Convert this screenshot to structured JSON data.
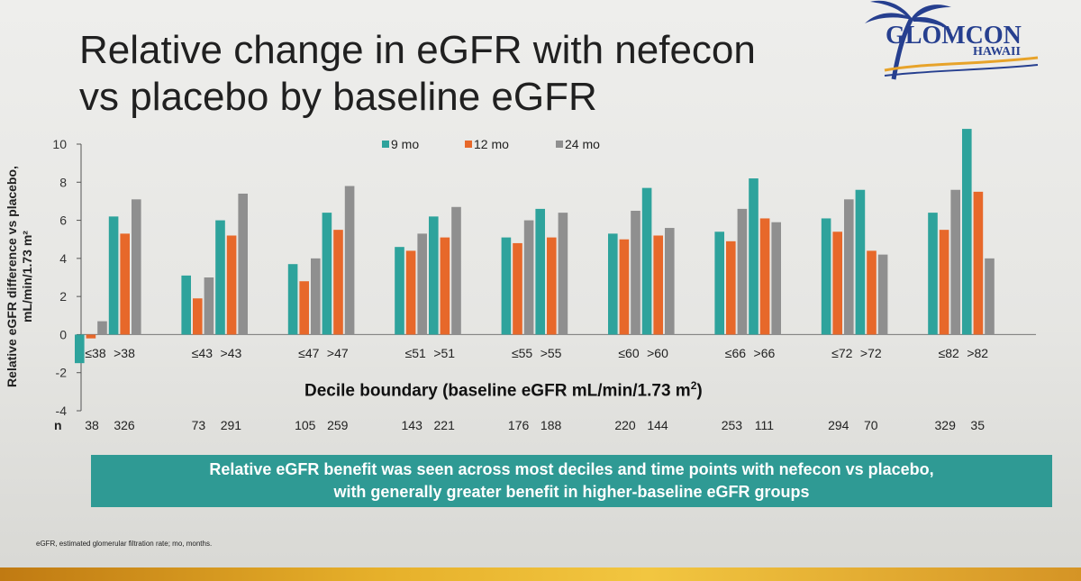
{
  "slide": {
    "title_line1": "Relative change in eGFR with nefecon",
    "title_line2": "vs placebo by baseline eGFR",
    "banner_line1": "Relative eGFR benefit was seen across most deciles and time points with nefecon vs placebo,",
    "banner_line2": "with generally greater benefit in higher-baseline eGFR groups",
    "footnote": "eGFR, estimated glomerular filtration rate; mo, months."
  },
  "logo": {
    "name": "GLOMCON",
    "sub": "HAWAII"
  },
  "colors": {
    "teal": "#2ea39c",
    "orange": "#e7682a",
    "gray": "#8f8f8f",
    "banner": "#2f9a94"
  },
  "chart_data": {
    "type": "bar",
    "ylabel_line1": "Relative eGFR difference vs placebo,",
    "ylabel_line2": "mL/min/1.73 m²",
    "xlabel": "Decile boundary (baseline eGFR mL/min/1.73 m",
    "xlabel_sup": "2",
    "xlabel_end": ")",
    "ylim": [
      -4,
      10
    ],
    "yticks": [
      "-4",
      "-2",
      "0",
      "2",
      "4",
      "6",
      "8",
      "10"
    ],
    "n_label": "n",
    "legend": [
      "9 mo",
      "12 mo",
      "24 mo"
    ],
    "groups": [
      {
        "left": "≤38",
        "right": ">38",
        "n_left": "38",
        "n_right": "326",
        "le": [
          -1.5,
          -0.2,
          0.7
        ],
        "gt": [
          6.2,
          5.3,
          7.1
        ]
      },
      {
        "left": "≤43",
        "right": ">43",
        "n_left": "73",
        "n_right": "291",
        "le": [
          3.1,
          1.9,
          3.0
        ],
        "gt": [
          6.0,
          5.2,
          7.4
        ]
      },
      {
        "left": "≤47",
        "right": ">47",
        "n_left": "105",
        "n_right": "259",
        "le": [
          3.7,
          2.8,
          4.0
        ],
        "gt": [
          6.4,
          5.5,
          7.8
        ]
      },
      {
        "left": "≤51",
        "right": ">51",
        "n_left": "143",
        "n_right": "221",
        "le": [
          4.6,
          4.4,
          5.3
        ],
        "gt": [
          6.2,
          5.1,
          6.7
        ]
      },
      {
        "left": "≤55",
        "right": ">55",
        "n_left": "176",
        "n_right": "188",
        "le": [
          5.1,
          4.8,
          6.0
        ],
        "gt": [
          6.6,
          5.1,
          6.4
        ]
      },
      {
        "left": "≤60",
        "right": ">60",
        "n_left": "220",
        "n_right": "144",
        "le": [
          5.3,
          5.0,
          6.5
        ],
        "gt": [
          7.7,
          5.2,
          5.6
        ]
      },
      {
        "left": "≤66",
        "right": ">66",
        "n_left": "253",
        "n_right": "111",
        "le": [
          5.4,
          4.9,
          6.6
        ],
        "gt": [
          8.2,
          6.1,
          5.9
        ]
      },
      {
        "left": "≤72",
        "right": ">72",
        "n_left": "294",
        "n_right": "70",
        "le": [
          6.1,
          5.4,
          7.1
        ],
        "gt": [
          7.6,
          4.4,
          4.2
        ]
      },
      {
        "left": "≤82",
        "right": ">82",
        "n_left": "329",
        "n_right": "35",
        "le": [
          6.4,
          5.5,
          7.6
        ],
        "gt": [
          10.8,
          7.5,
          4.0
        ]
      }
    ]
  }
}
